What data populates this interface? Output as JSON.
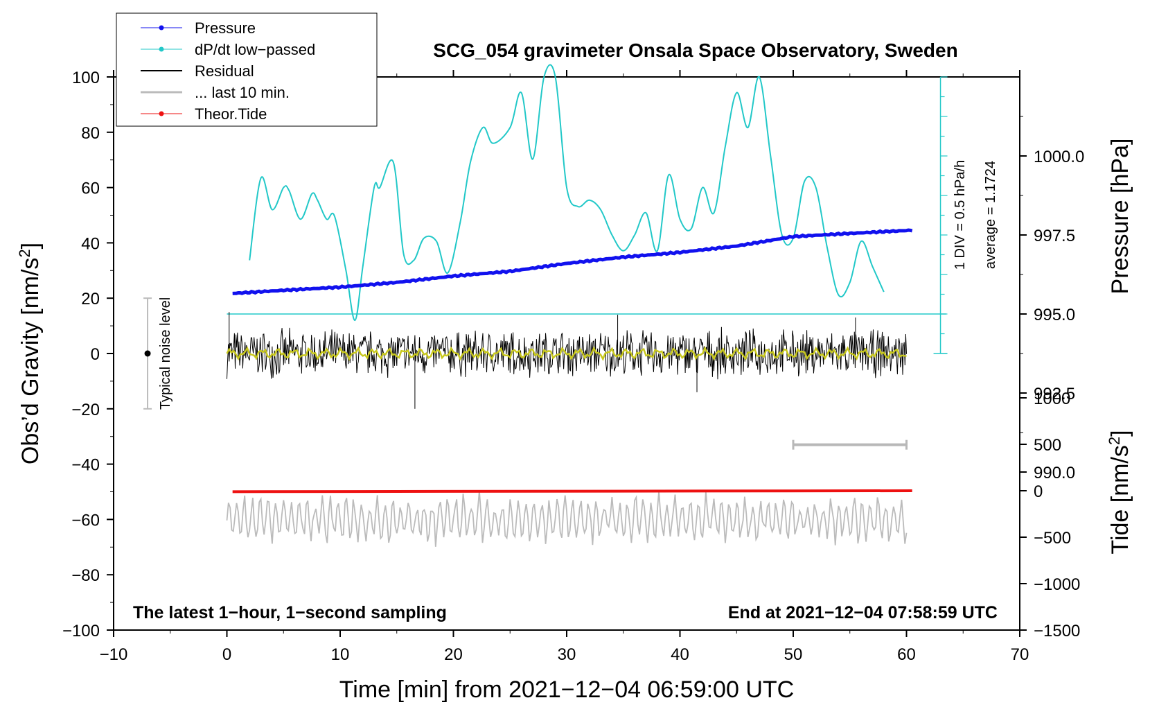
{
  "chart_data": {
    "type": "line",
    "title": "SCG_054 gravimeter Onsala Space Observatory, Sweden",
    "xlabel": "Time [min] from 2021−12−04 06:59:00 UTC",
    "ylabel": "Obs’d Gravity [nm/s",
    "ylabel_sup": "2",
    "ylabel_close": "]",
    "y2label": "Pressure [hPa]",
    "y3label": "Tide [nm/s",
    "y3label_sup": "2",
    "y3label_close": "]",
    "xlim": [
      -10,
      70
    ],
    "ylim": [
      -100,
      100
    ],
    "pressure_lim": [
      985.0,
      1002.5
    ],
    "tide_lim": [
      -1500,
      1000
    ],
    "x_ticks": [
      "−10",
      "0",
      "10",
      "20",
      "30",
      "40",
      "50",
      "60",
      "70"
    ],
    "y_ticks": [
      "−100",
      "−80",
      "−60",
      "−40",
      "−20",
      "0",
      "20",
      "40",
      "60",
      "80",
      "100"
    ],
    "pressure_ticks": [
      "990.0",
      "992.5",
      "995.0",
      "997.5",
      "1000.0"
    ],
    "tide_ticks": [
      "−1500",
      "−1000",
      "−500",
      "0",
      "500",
      "1000"
    ],
    "legend": [
      "Pressure",
      "dP/dt low−passed",
      "Residual",
      "... last 10 min.",
      "Theor.Tide"
    ],
    "legend_location": "top-left",
    "footer_left": "The latest 1−hour, 1−second sampling",
    "footer_right": "End at 2021−12−04 07:58:59 UTC",
    "noise_label": "Typical noise level",
    "noise_range": [
      -20,
      20
    ],
    "div_label": "1 DIV = 0.5 hPa/h",
    "average_label": "average = 1.1724",
    "dpdt_baseline_hpa": 995.0,
    "series": [
      {
        "name": "Pressure",
        "color": "#1111ee",
        "x": [
          0.5,
          5,
          10,
          15,
          20,
          25,
          30,
          35,
          40,
          45,
          50,
          55,
          60.5
        ],
        "values": [
          995.65,
          995.75,
          995.85,
          996.0,
          996.2,
          996.35,
          996.6,
          996.8,
          996.95,
          997.15,
          997.45,
          997.55,
          997.65
        ]
      },
      {
        "name": "dP/dt low−passed",
        "color": "#22c8c8",
        "x": [
          2,
          3,
          4,
          5,
          5.5,
          6.5,
          7.5,
          8,
          8.8,
          9.5,
          10.5,
          11.3,
          12,
          13,
          13.5,
          14.7,
          15.6,
          16.5,
          17.4,
          18.5,
          19.5,
          20.6,
          21.5,
          22.6,
          23.5,
          25,
          26,
          27,
          28,
          29,
          30,
          31,
          32,
          33,
          34,
          35,
          36,
          37,
          38,
          39,
          40,
          41,
          42,
          43,
          44,
          45,
          46,
          47,
          48,
          49,
          50,
          51,
          52,
          53,
          54,
          55,
          56,
          57,
          58
        ],
        "values": [
          996.7,
          999.3,
          998.3,
          999.0,
          998.9,
          998.0,
          998.8,
          998.6,
          998.0,
          998.1,
          996.4,
          994.8,
          996.5,
          999.0,
          999.0,
          999.8,
          996.9,
          996.7,
          997.4,
          997.3,
          996.3,
          997.9,
          999.8,
          1000.9,
          1000.4,
          1000.9,
          1002.0,
          999.9,
          1002.9,
          1003.0,
          999.0,
          998.4,
          998.6,
          998.3,
          997.5,
          997.0,
          997.5,
          998.2,
          997.0,
          999.4,
          998.0,
          997.7,
          999.0,
          998.2,
          1000.3,
          1002.0,
          1000.9,
          1003.0,
          1000.0,
          997.5,
          997.4,
          999.2,
          999.0,
          997.1,
          995.6,
          996.0,
          997.3,
          996.5,
          995.7
        ]
      },
      {
        "name": "Residual",
        "color": "#000000",
        "x_range": [
          0,
          60
        ],
        "amplitude": 8,
        "spikes": [
          15,
          -20,
          14,
          -14,
          13
        ]
      },
      {
        "name": "Residual smoothed",
        "color": "#c8c81e",
        "x_range": [
          0,
          60
        ],
        "amplitude": 2
      },
      {
        "name": "... last 10 min.",
        "color": "#b8b8b8",
        "x_range": [
          50,
          60
        ],
        "y": -33
      },
      {
        "name": "Theor.Tide",
        "color": "#ee1111",
        "x": [
          0.5,
          60.5
        ],
        "values": [
          -10,
          0
        ]
      },
      {
        "name": "Tide residual",
        "color": "#bbbbbb",
        "x_range": [
          0,
          60
        ],
        "center": -60,
        "amplitude": 9
      }
    ]
  }
}
